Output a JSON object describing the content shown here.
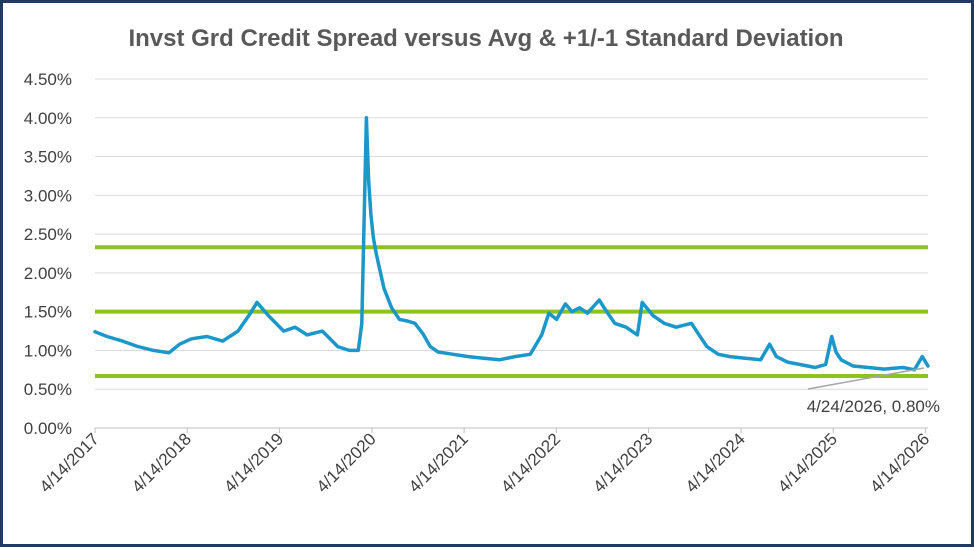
{
  "chart_data": {
    "type": "line",
    "title": "Invst Grd Credit Spread versus Avg & +1/-1 Standard Deviation",
    "xlabel": "",
    "ylabel": "",
    "x_tick_labels": [
      "4/14/2017",
      "4/14/2018",
      "4/14/2019",
      "4/14/2020",
      "4/14/2021",
      "4/14/2022",
      "4/14/2023",
      "4/14/2024",
      "4/14/2025",
      "4/14/2026"
    ],
    "y_tick_labels": [
      "0.00%",
      "0.50%",
      "1.00%",
      "1.50%",
      "2.00%",
      "2.50%",
      "3.00%",
      "3.50%",
      "4.00%",
      "4.50%"
    ],
    "ylim": [
      0,
      4.5
    ],
    "xlim": [
      "2017-04-14",
      "2026-04-24"
    ],
    "grid": "horizontal",
    "legend": "none",
    "series": [
      {
        "color": "#1b97c9",
        "x": [
          "2017-04-14",
          "2017-06-01",
          "2017-08-01",
          "2017-10-01",
          "2017-12-01",
          "2018-02-01",
          "2018-03-15",
          "2018-05-01",
          "2018-07-01",
          "2018-09-01",
          "2018-11-01",
          "2018-12-20",
          "2019-01-15",
          "2019-03-01",
          "2019-05-01",
          "2019-06-15",
          "2019-08-01",
          "2019-10-01",
          "2019-12-01",
          "2020-01-15",
          "2020-02-20",
          "2020-03-05",
          "2020-03-23",
          "2020-04-01",
          "2020-04-10",
          "2020-04-20",
          "2020-05-01",
          "2020-06-01",
          "2020-07-01",
          "2020-08-01",
          "2020-09-01",
          "2020-10-01",
          "2020-11-01",
          "2020-12-01",
          "2021-01-01",
          "2021-03-01",
          "2021-05-01",
          "2021-07-01",
          "2021-09-01",
          "2021-11-01",
          "2022-01-01",
          "2022-02-15",
          "2022-03-15",
          "2022-04-15",
          "2022-05-20",
          "2022-06-15",
          "2022-07-15",
          "2022-08-15",
          "2022-10-01",
          "2022-10-20",
          "2022-12-01",
          "2023-01-15",
          "2023-03-01",
          "2023-03-20",
          "2023-05-01",
          "2023-06-15",
          "2023-08-01",
          "2023-10-01",
          "2023-10-31",
          "2023-12-01",
          "2024-01-15",
          "2024-03-01",
          "2024-05-01",
          "2024-07-01",
          "2024-08-05",
          "2024-09-01",
          "2024-10-15",
          "2024-12-01",
          "2025-02-01",
          "2025-03-15",
          "2025-04-08",
          "2025-04-25",
          "2025-05-15",
          "2025-07-01",
          "2025-09-01",
          "2025-11-01",
          "2026-01-15",
          "2026-03-01",
          "2026-04-01",
          "2026-04-24"
        ],
        "values": [
          1.24,
          1.18,
          1.12,
          1.05,
          1.0,
          0.97,
          1.08,
          1.15,
          1.18,
          1.12,
          1.25,
          1.48,
          1.62,
          1.45,
          1.25,
          1.3,
          1.2,
          1.25,
          1.05,
          1.0,
          1.0,
          1.35,
          4.0,
          3.2,
          2.75,
          2.45,
          2.25,
          1.8,
          1.55,
          1.4,
          1.38,
          1.35,
          1.22,
          1.05,
          0.98,
          0.95,
          0.92,
          0.9,
          0.88,
          0.92,
          0.95,
          1.2,
          1.48,
          1.4,
          1.6,
          1.5,
          1.55,
          1.48,
          1.65,
          1.55,
          1.35,
          1.3,
          1.2,
          1.62,
          1.45,
          1.35,
          1.3,
          1.35,
          1.2,
          1.05,
          0.95,
          0.92,
          0.9,
          0.88,
          1.08,
          0.92,
          0.85,
          0.82,
          0.78,
          0.82,
          1.18,
          0.98,
          0.88,
          0.8,
          0.78,
          0.76,
          0.78,
          0.75,
          0.92,
          0.8
        ]
      }
    ],
    "reference_lines": [
      {
        "name": "+1 Standard Deviation",
        "value": 2.33,
        "color": "#8ec21f"
      },
      {
        "name": "Average",
        "value": 1.5,
        "color": "#8ec21f"
      },
      {
        "name": "-1 Standard Deviation",
        "value": 0.67,
        "color": "#8ec21f"
      }
    ],
    "annotations": [
      {
        "text": "4/24/2026, 0.80%",
        "x": "2026-04-24",
        "y": 0.8
      }
    ]
  }
}
